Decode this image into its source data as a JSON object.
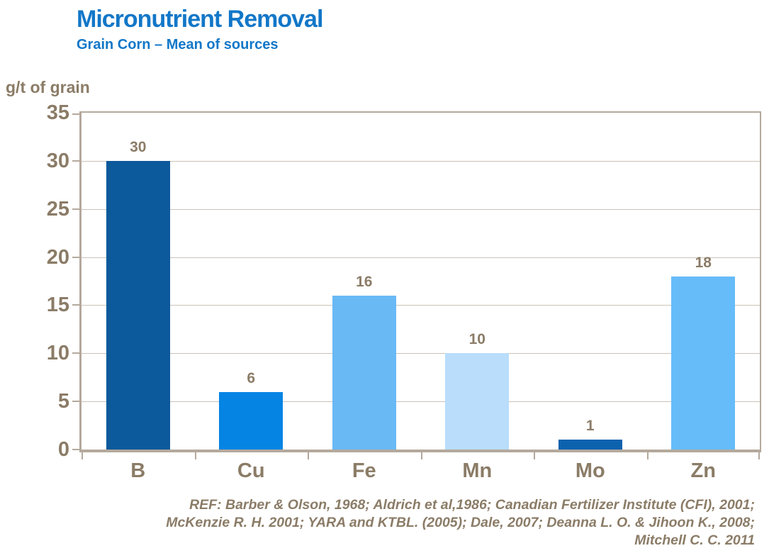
{
  "header": {
    "title": "Micronutrient Removal",
    "subtitle": "Grain Corn – Mean of sources"
  },
  "chart_data": {
    "type": "bar",
    "title": "Micronutrient Removal",
    "subtitle": "Grain Corn – Mean of sources",
    "ylabel": "g/t of grain",
    "xlabel": "",
    "categories": [
      "B",
      "Cu",
      "Fe",
      "Mn",
      "Mo",
      "Zn"
    ],
    "values": [
      30,
      6,
      16,
      10,
      1,
      18
    ],
    "bar_colors": [
      "#0C599B",
      "#0584E4",
      "#69B9F5",
      "#B9DDFB",
      "#0D62AE",
      "#66BCF9"
    ],
    "ylim": [
      0,
      35
    ],
    "ytick_step": 5,
    "grid": true,
    "data_labels": true,
    "legend_position": "none"
  },
  "colors": {
    "title_blue": "#1277C8",
    "text_taupe": "#8B7C67",
    "axis_border": "#B4A99D",
    "gridline": "#CBC3B7",
    "background": "#ffffff"
  },
  "footer": {
    "lines": [
      "REF: Barber & Olson, 1968; Aldrich et al,1986; Canadian Fertilizer Institute (CFI), 2001;",
      "McKenzie R. H. 2001; YARA and KTBL. (2005); Dale, 2007; Deanna L. O. & Jihoon K.,  2008;",
      "Mitchell C. C. 2011"
    ]
  }
}
